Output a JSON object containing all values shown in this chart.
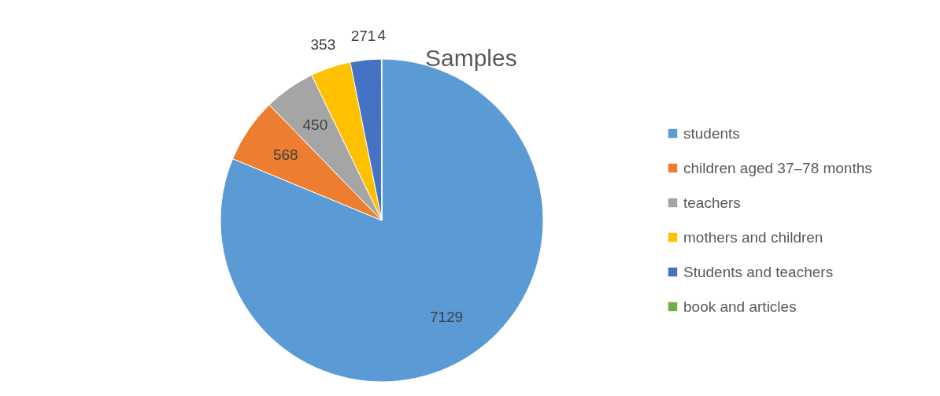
{
  "chart_data": {
    "type": "pie",
    "title": "Samples",
    "categories": [
      "students",
      "children aged 37–78 months",
      "teachers",
      "mothers and  children",
      "Students and teachers",
      "book and articles"
    ],
    "values": [
      7129,
      568,
      450,
      353,
      271,
      4
    ],
    "colors": [
      "#5b9bd5",
      "#ed7d31",
      "#a5a5a5",
      "#ffc000",
      "#4472c4",
      "#70ad47"
    ],
    "data_labels": true,
    "legend": "right"
  }
}
